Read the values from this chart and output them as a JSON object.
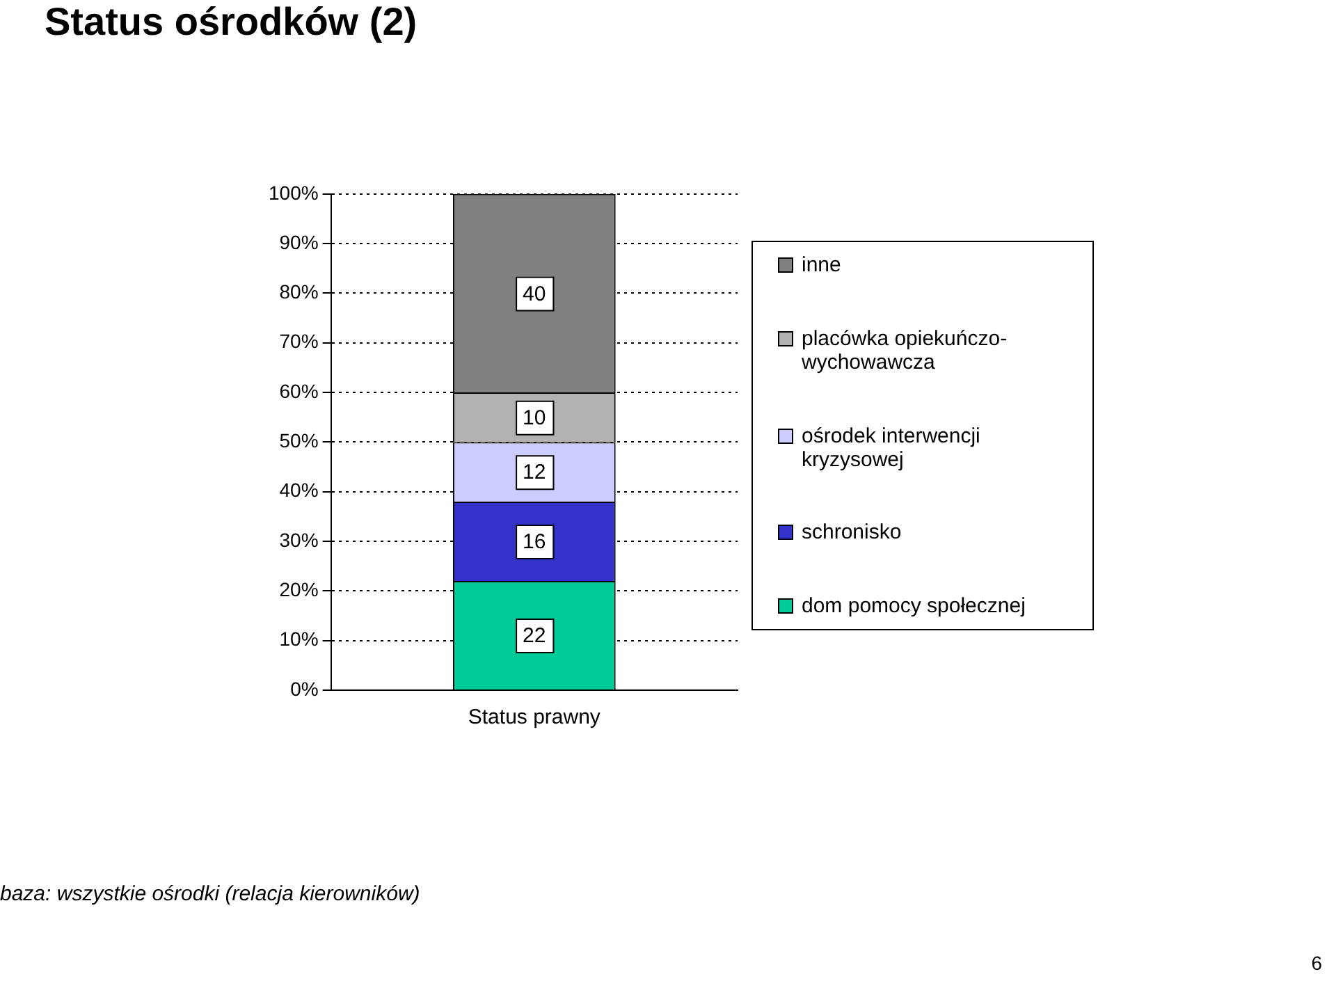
{
  "chart_data": {
    "type": "bar",
    "title": "Status ośrodków (2)",
    "categories": [
      "Status prawny"
    ],
    "stacked": true,
    "series": [
      {
        "name": "dom pomocy społecznej",
        "color": "#00cc99",
        "values": [
          22
        ]
      },
      {
        "name": "schronisko",
        "color": "#3333cc",
        "values": [
          16
        ]
      },
      {
        "name": "ośrodek interwencji kryzysowej",
        "color": "#ccccff",
        "values": [
          12
        ]
      },
      {
        "name": "placówka opiekuńczo-wychowawcza",
        "color": "#b2b2b2",
        "values": [
          10
        ]
      },
      {
        "name": "inne",
        "color": "#808080",
        "values": [
          40
        ]
      }
    ],
    "ylim": [
      0,
      100
    ],
    "yticks": [
      {
        "value": 0,
        "label": "0%"
      },
      {
        "value": 10,
        "label": "10%"
      },
      {
        "value": 20,
        "label": "20%"
      },
      {
        "value": 30,
        "label": "30%"
      },
      {
        "value": 40,
        "label": "40%"
      },
      {
        "value": 50,
        "label": "50%"
      },
      {
        "value": 60,
        "label": "60%"
      },
      {
        "value": 70,
        "label": "70%"
      },
      {
        "value": 80,
        "label": "80%"
      },
      {
        "value": 90,
        "label": "90%"
      },
      {
        "value": 100,
        "label": "100%"
      }
    ],
    "grid": "y",
    "data_labels": true,
    "legend": "right",
    "annotations": [
      "baza: wszystkie ośrodki (relacja kierowników)",
      "6"
    ]
  }
}
